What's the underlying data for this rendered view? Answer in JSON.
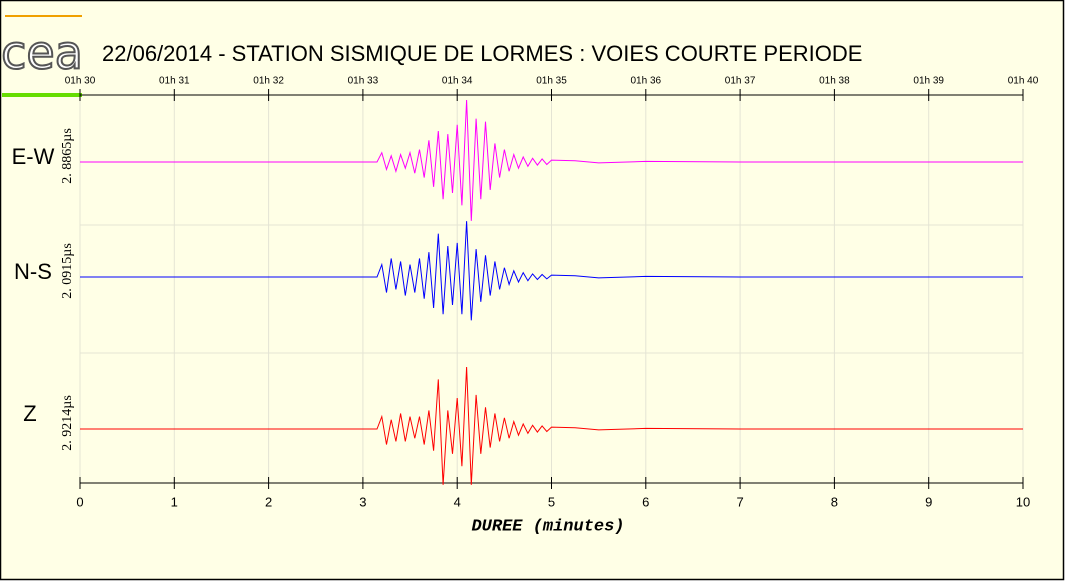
{
  "chart_data": {
    "type": "line",
    "logo": "cea",
    "title": "22/06/2014  -  STATION SISMIQUE DE LORMES : VOIES COURTE PERIODE",
    "xlabel": "DUREE (minutes)",
    "xlim": [
      0,
      10
    ],
    "xticks": [
      0,
      1,
      2,
      3,
      4,
      5,
      6,
      7,
      8,
      9,
      10
    ],
    "top_xticks": [
      {
        "value": 0,
        "label": "01h 30"
      },
      {
        "value": 1,
        "label": "01h 31"
      },
      {
        "value": 2,
        "label": "01h 32"
      },
      {
        "value": 3,
        "label": "01h 33"
      },
      {
        "value": 4,
        "label": "01h 34"
      },
      {
        "value": 5,
        "label": "01h 35"
      },
      {
        "value": 6,
        "label": "01h 36"
      },
      {
        "value": 7,
        "label": "01h 37"
      },
      {
        "value": 8,
        "label": "01h 38"
      },
      {
        "value": 9,
        "label": "01h 39"
      },
      {
        "value": 10,
        "label": "01h 40"
      }
    ],
    "ylim": [
      -1,
      1
    ],
    "grid": true,
    "x": [
      0,
      3.15,
      3.2,
      3.25,
      3.3,
      3.35,
      3.4,
      3.45,
      3.5,
      3.55,
      3.6,
      3.65,
      3.7,
      3.75,
      3.8,
      3.85,
      3.9,
      3.95,
      4,
      4.05,
      4.1,
      4.15,
      4.2,
      4.25,
      4.3,
      4.35,
      4.4,
      4.45,
      4.5,
      4.55,
      4.6,
      4.65,
      4.7,
      4.75,
      4.8,
      4.85,
      4.9,
      4.95,
      5,
      5.25,
      5.5,
      6,
      7,
      10
    ],
    "series": [
      {
        "name": "E-W",
        "scale_label": "2. 8865µs",
        "color": "#ff00ff",
        "values": [
          0,
          0,
          0.15,
          -0.12,
          0.1,
          -0.15,
          0.12,
          -0.1,
          0.15,
          -0.18,
          0.2,
          -0.25,
          0.35,
          -0.4,
          0.5,
          -0.6,
          0.45,
          -0.5,
          0.6,
          -0.7,
          1.0,
          -0.95,
          0.7,
          -0.6,
          0.65,
          -0.45,
          0.3,
          -0.25,
          0.2,
          -0.15,
          0.12,
          -0.1,
          0.08,
          -0.07,
          0.06,
          -0.05,
          0.05,
          -0.04,
          0.03,
          0.02,
          -0.015,
          0.01,
          0,
          0
        ]
      },
      {
        "name": "N-S",
        "scale_label": "2. 0915µs",
        "color": "#0000ff",
        "values": [
          0,
          0,
          0.2,
          -0.25,
          0.3,
          -0.2,
          0.25,
          -0.3,
          0.2,
          -0.25,
          0.3,
          -0.35,
          0.4,
          -0.5,
          0.7,
          -0.6,
          0.5,
          -0.45,
          0.55,
          -0.6,
          0.9,
          -0.7,
          0.45,
          -0.4,
          0.35,
          -0.3,
          0.25,
          -0.2,
          0.15,
          -0.12,
          0.1,
          -0.08,
          0.07,
          -0.06,
          0.05,
          -0.04,
          0.04,
          -0.03,
          0.03,
          0.02,
          -0.015,
          0.01,
          0,
          0
        ]
      },
      {
        "name": "Z",
        "scale_label": "2. 9214µs",
        "color": "#ff0000",
        "values": [
          0,
          0,
          0.2,
          -0.25,
          0.15,
          -0.2,
          0.25,
          -0.2,
          0.2,
          -0.15,
          0.2,
          -0.25,
          0.3,
          -0.35,
          0.8,
          -0.9,
          0.3,
          -0.4,
          0.5,
          -0.6,
          1.0,
          -0.9,
          0.55,
          -0.4,
          0.35,
          -0.3,
          0.25,
          -0.2,
          0.18,
          -0.15,
          0.12,
          -0.1,
          0.08,
          -0.07,
          0.06,
          -0.05,
          0.05,
          -0.04,
          0.03,
          0.02,
          -0.015,
          0.01,
          0,
          0
        ]
      }
    ]
  }
}
